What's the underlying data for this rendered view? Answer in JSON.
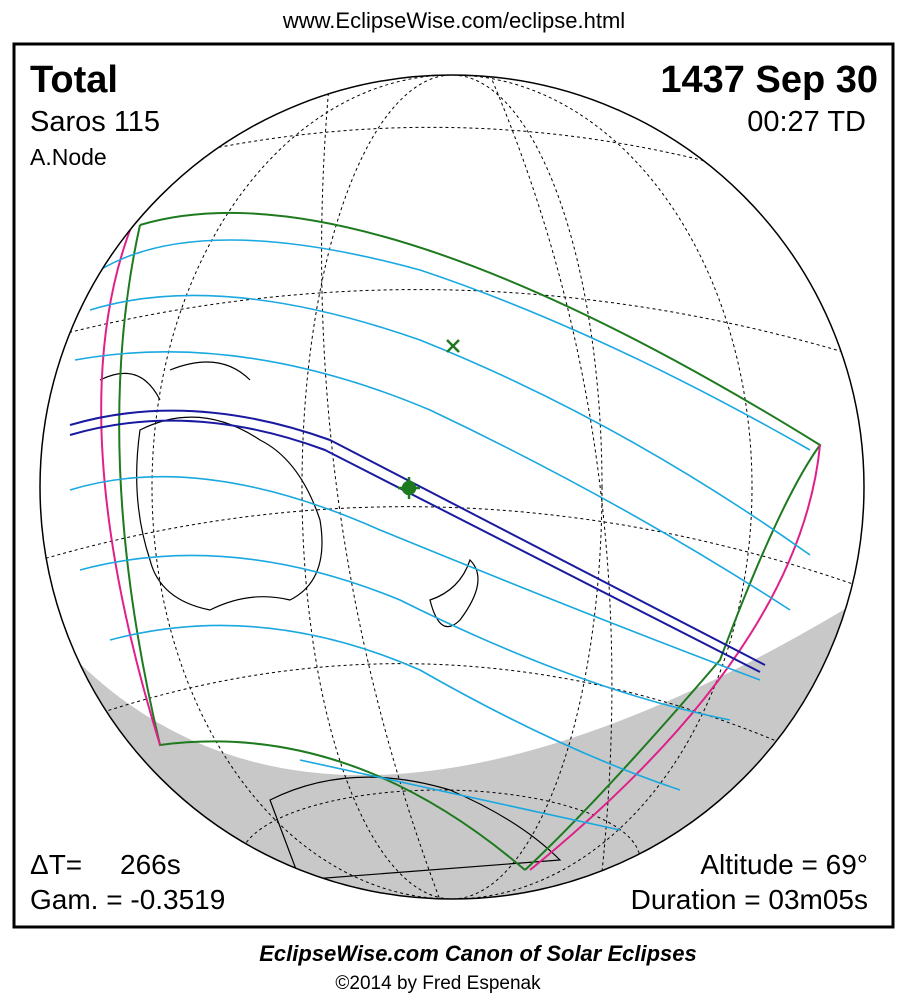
{
  "header": {
    "url": "www.EclipseWise.com/eclipse.html"
  },
  "map": {
    "eclipse_type": "Total",
    "date": "1437 Sep 30",
    "saros": "Saros 115",
    "time": "00:27 TD",
    "node": "A.Node",
    "delta_t_label": "ΔT=",
    "delta_t_value": "266s",
    "gamma": "Gam. = -0.3519",
    "altitude": "Altitude = 69°",
    "duration": "Duration = 03m05s"
  },
  "footer": {
    "title": "EclipseWise.com Canon of Solar Eclipses",
    "copyright": "©2014 by Fred Espenak"
  }
}
